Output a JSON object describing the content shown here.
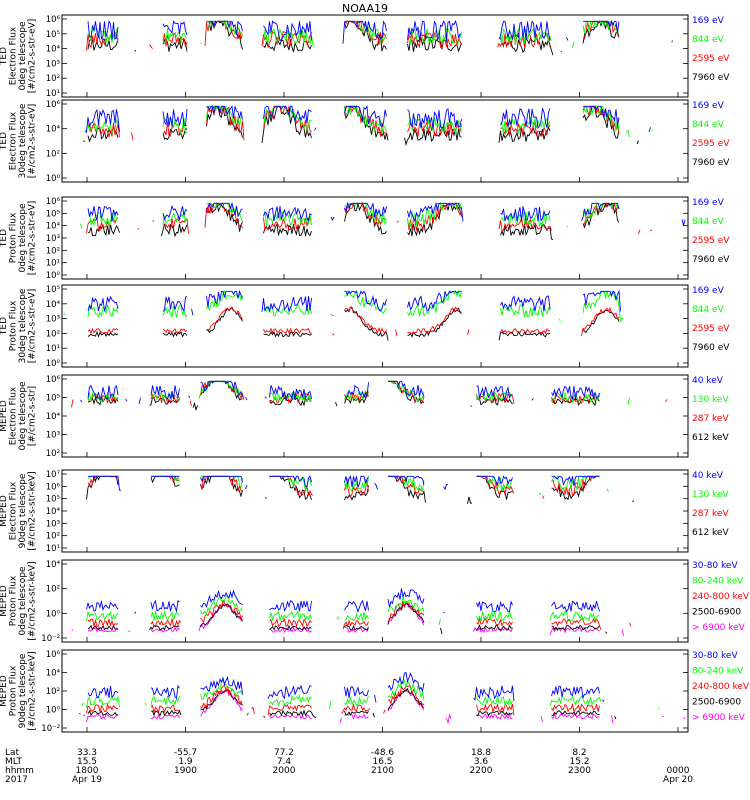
{
  "title": "NOAA19",
  "colors": {
    "black": "#000000",
    "red": "#ff0000",
    "green": "#00ff00",
    "blue": "#0000ff",
    "magenta": "#ff00ff"
  },
  "chart_data": [
    {
      "type": "line",
      "ylabel": [
        "TED",
        "Electron Flux",
        "0deg telescope",
        "[#/cm2-s-str-eV]"
      ],
      "ylog": true,
      "yticks": [
        "10¹",
        "10²",
        "10³",
        "10⁴",
        "10⁵",
        "10⁶"
      ],
      "series": [
        {
          "name": "7960 eV",
          "color": "black",
          "profile": "ted_e0",
          "level": 1.6,
          "spread": 0.9
        },
        {
          "name": "2595 eV",
          "color": "red",
          "profile": "ted_e0",
          "level": 2.0,
          "spread": 1.0
        },
        {
          "name": "844 eV",
          "color": "green",
          "profile": "ted_e0",
          "level": 2.3,
          "spread": 1.0
        },
        {
          "name": "169 eV",
          "color": "blue",
          "profile": "ted_e0",
          "level": 2.6,
          "spread": 1.4
        }
      ]
    },
    {
      "type": "line",
      "ylabel": [
        "TED",
        "Electron Flux",
        "30deg telescope",
        "[#/cm2-s-str-eV]"
      ],
      "ylog": true,
      "yticks": [
        "10⁰",
        "10²",
        "10⁴",
        "10⁶"
      ],
      "series": [
        {
          "name": "7960 eV",
          "color": "black",
          "profile": "ted_e30",
          "level": 1.2,
          "spread": 0.9
        },
        {
          "name": "2595 eV",
          "color": "red",
          "profile": "ted_e30",
          "level": 1.6,
          "spread": 1.0
        },
        {
          "name": "844 eV",
          "color": "green",
          "profile": "ted_e30",
          "level": 1.9,
          "spread": 1.0
        },
        {
          "name": "169 eV",
          "color": "blue",
          "profile": "ted_e30",
          "level": 2.3,
          "spread": 1.3
        }
      ]
    },
    {
      "type": "line",
      "ylabel": [
        "TED",
        "Proton Flux",
        "0deg telescope",
        "[#/cm2-s-str-eV]"
      ],
      "ylog": true,
      "yticks": [
        "10⁰",
        "10¹",
        "10²",
        "10³",
        "10⁴",
        "10⁵",
        "10⁶"
      ],
      "series": [
        {
          "name": "7960 eV",
          "color": "black",
          "profile": "ted_p0",
          "level": 1.4,
          "spread": 0.8
        },
        {
          "name": "2595 eV",
          "color": "red",
          "profile": "ted_p0",
          "level": 1.9,
          "spread": 0.8
        },
        {
          "name": "844 eV",
          "color": "green",
          "profile": "ted_p0",
          "level": 2.3,
          "spread": 0.9
        },
        {
          "name": "169 eV",
          "color": "blue",
          "profile": "ted_p0",
          "level": 2.7,
          "spread": 1.0
        }
      ]
    },
    {
      "type": "line",
      "ylabel": [
        "TED",
        "Proton Flux",
        "30deg telescope",
        "[#/cm2-s-str-eV]"
      ],
      "ylog": true,
      "yticks": [
        "10⁰",
        "10¹",
        "10²",
        "10³",
        "10⁴",
        "10⁵"
      ],
      "series": [
        {
          "name": "7960 eV",
          "color": "black",
          "profile": "ted_p30",
          "level": 0.3,
          "spread": 0.3
        },
        {
          "name": "2595 eV",
          "color": "red",
          "profile": "ted_p30",
          "level": 0.6,
          "spread": 0.3
        },
        {
          "name": "844 eV",
          "color": "green",
          "profile": "ted_p30",
          "level": 2.0,
          "spread": 0.8
        },
        {
          "name": "169 eV",
          "color": "blue",
          "profile": "ted_p30",
          "level": 2.5,
          "spread": 1.0
        }
      ]
    },
    {
      "type": "line",
      "ylabel": [
        "MEPED",
        "Electron Flux",
        "0deg telescope",
        "[#/cm2-s-str]"
      ],
      "ylog": true,
      "yticks": [
        "10²",
        "10³",
        "10⁴",
        "10⁵",
        "10⁶"
      ],
      "series": [
        {
          "name": "612 keV",
          "color": "black",
          "profile": "mep_e0",
          "level": 2.2,
          "spread": 0.5
        },
        {
          "name": "287 keV",
          "color": "red",
          "profile": "mep_e0",
          "level": 2.4,
          "spread": 0.6
        },
        {
          "name": "130 keV",
          "color": "green",
          "profile": "mep_e0",
          "level": 2.5,
          "spread": 0.6
        },
        {
          "name": "40 keV",
          "color": "blue",
          "profile": "mep_e0",
          "level": 2.7,
          "spread": 0.9
        }
      ]
    },
    {
      "type": "line",
      "ylabel": [
        "MEPED",
        "Electron Flux",
        "90deg telescope",
        "[#/cm2-s-str-keV]"
      ],
      "ylog": true,
      "yticks": [
        "10¹",
        "10²",
        "10³",
        "10⁴",
        "10⁵",
        "10⁶",
        "10⁷"
      ],
      "series": [
        {
          "name": "612 keV",
          "color": "black",
          "profile": "mep_e90",
          "level": 2.2,
          "spread": 0.6
        },
        {
          "name": "287 keV",
          "color": "red",
          "profile": "mep_e90",
          "level": 2.5,
          "spread": 0.8
        },
        {
          "name": "130 keV",
          "color": "green",
          "profile": "mep_e90",
          "level": 2.9,
          "spread": 0.9
        },
        {
          "name": "40 keV",
          "color": "blue",
          "profile": "mep_e90",
          "level": 3.3,
          "spread": 1.1
        }
      ]
    },
    {
      "type": "line",
      "ylabel": [
        "MEPED",
        "Proton Flux",
        "0deg telescope",
        "[#/cm2-s-str-keV]"
      ],
      "ylog": true,
      "yticks": [
        "10⁻²",
        "10⁰",
        "10²",
        "10⁴"
      ],
      "series": [
        {
          "name": "> 6900 keV",
          "color": "magenta",
          "profile": "mep_p0",
          "level": -1.5,
          "spread": 0.3
        },
        {
          "name": "2500-6900",
          "color": "black",
          "profile": "mep_p0",
          "level": -1.3,
          "spread": 0.3
        },
        {
          "name": "240-800 keV",
          "color": "red",
          "profile": "mep_p0",
          "level": -1.0,
          "spread": 0.5
        },
        {
          "name": "80-240 keV",
          "color": "green",
          "profile": "mep_p0",
          "level": -0.5,
          "spread": 0.6
        },
        {
          "name": "30-80 keV",
          "color": "blue",
          "profile": "mep_p0",
          "level": 0.3,
          "spread": 0.7
        }
      ]
    },
    {
      "type": "line",
      "ylabel": [
        "MEPED",
        "Proton Flux",
        "90deg telescope",
        "[#/cm2-s-str-keV]"
      ],
      "ylog": true,
      "yticks": [
        "10⁻²",
        "10⁰",
        "10²",
        "10⁴",
        "10⁶"
      ],
      "series": [
        {
          "name": "> 6900 keV",
          "color": "magenta",
          "profile": "mep_p90",
          "level": -1.2,
          "spread": 0.3
        },
        {
          "name": "2500-6900",
          "color": "black",
          "profile": "mep_p90",
          "level": -0.9,
          "spread": 0.3
        },
        {
          "name": "240-800 keV",
          "color": "red",
          "profile": "mep_p90",
          "level": -0.6,
          "spread": 0.5
        },
        {
          "name": "80-240 keV",
          "color": "green",
          "profile": "mep_p90",
          "level": 0.0,
          "spread": 0.6
        },
        {
          "name": "30-80 keV",
          "color": "blue",
          "profile": "mep_p90",
          "level": 0.6,
          "spread": 0.8
        }
      ]
    }
  ],
  "x_axis": {
    "rows": [
      "Lat",
      "MLT",
      "hhmm",
      "2017"
    ],
    "ticks": [
      {
        "lat": "33.3",
        "mlt": "15.5",
        "hhmm": "1800",
        "date": "Apr 19"
      },
      {
        "lat": "-55.7",
        "mlt": "1.9",
        "hhmm": "1900",
        "date": ""
      },
      {
        "lat": "77.2",
        "mlt": "7.4",
        "hhmm": "2000",
        "date": ""
      },
      {
        "lat": "-48.6",
        "mlt": "16.5",
        "hhmm": "2100",
        "date": ""
      },
      {
        "lat": "18.8",
        "mlt": "3.6",
        "hhmm": "2200",
        "date": ""
      },
      {
        "lat": "8.2",
        "mlt": "15.2",
        "hhmm": "2300",
        "date": ""
      },
      {
        "lat": "",
        "mlt": "",
        "hhmm": "0000",
        "date": "Apr 20"
      }
    ]
  }
}
